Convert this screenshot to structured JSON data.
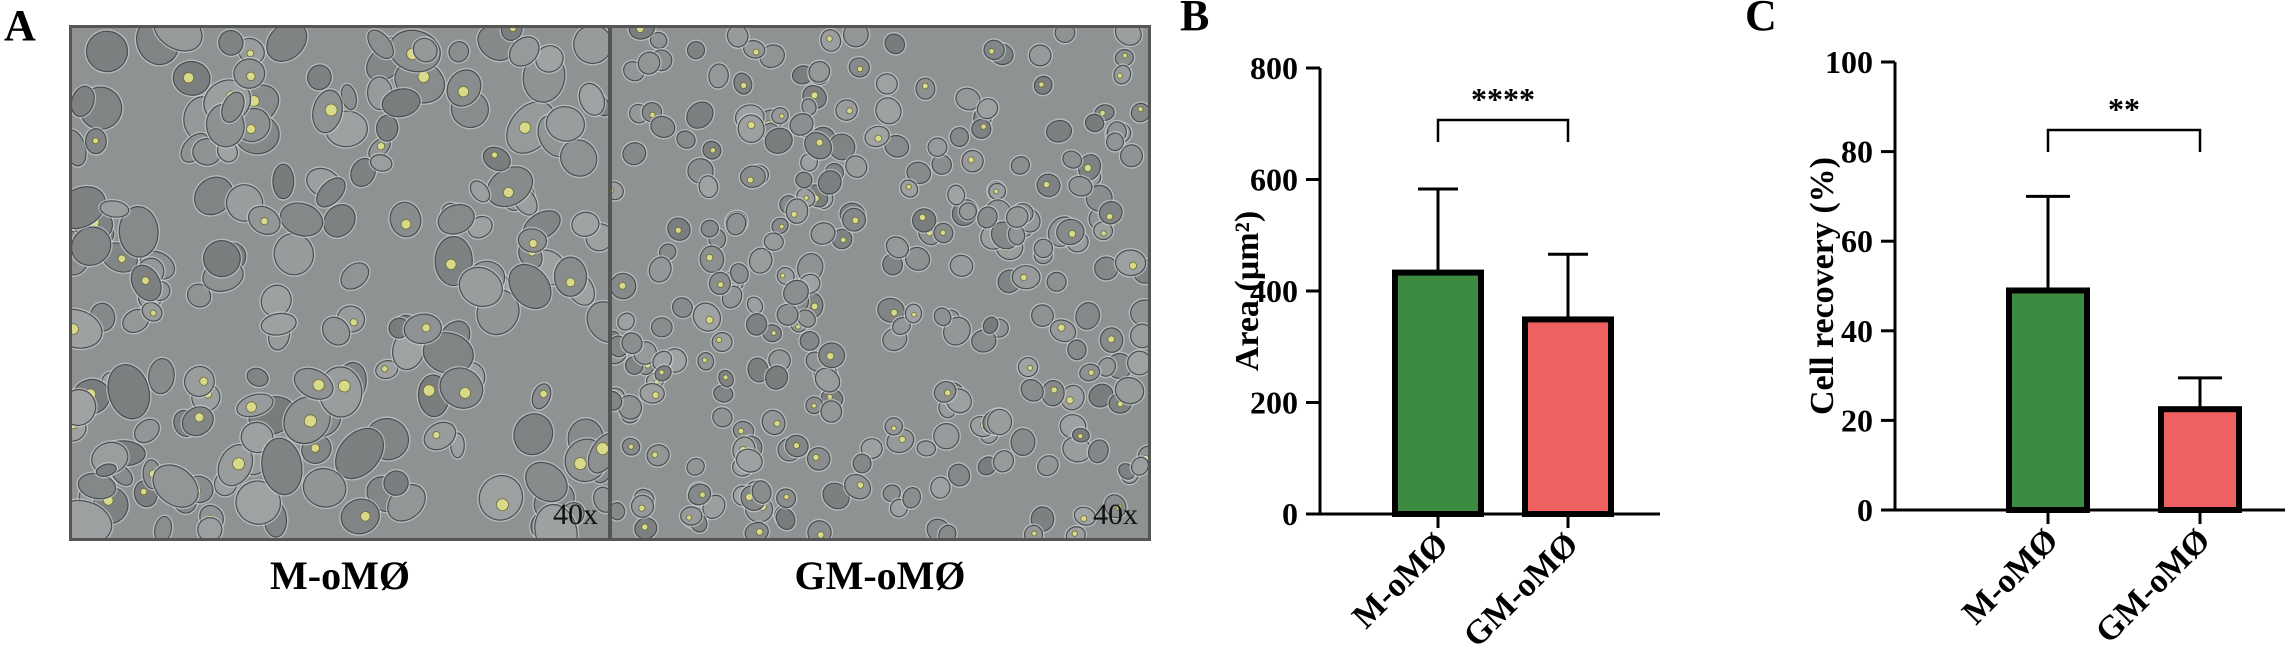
{
  "panel_a": {
    "letter": "A",
    "images": [
      {
        "label": "M-oMØ",
        "magnification": "40x"
      },
      {
        "label": "GM-oMØ",
        "magnification": "40x"
      }
    ]
  },
  "chart_data": [
    {
      "panel": "B",
      "type": "bar",
      "categories": [
        "M-oMØ",
        "GM-oMØ"
      ],
      "values": [
        433,
        349
      ],
      "error_upper": [
        583,
        466
      ],
      "colors": [
        "#3d8b40",
        "#ef6060"
      ],
      "ylabel": "Area (µm²)",
      "ylim": [
        0,
        800
      ],
      "yticks": [
        0,
        200,
        400,
        600,
        800
      ],
      "significance": "****",
      "grid": false
    },
    {
      "panel": "C",
      "type": "bar",
      "categories": [
        "M-oMØ",
        "GM-oMØ"
      ],
      "values": [
        49,
        22.5
      ],
      "error_upper": [
        70,
        29.5
      ],
      "colors": [
        "#3d8b40",
        "#ef6060"
      ],
      "ylabel": "Cell recovery (%)",
      "ylim": [
        0,
        100
      ],
      "yticks": [
        0,
        20,
        40,
        60,
        80,
        100
      ],
      "significance": "**",
      "grid": false
    }
  ]
}
